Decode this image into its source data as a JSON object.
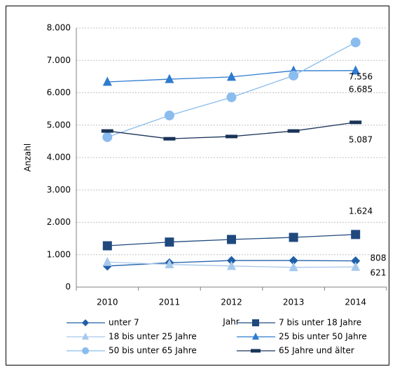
{
  "chart_data": {
    "type": "line",
    "x_label": "Jahr",
    "y_label": "Anzahl",
    "categories": [
      "2010",
      "2011",
      "2012",
      "2013",
      "2014"
    ],
    "ylim": [
      0,
      8000
    ],
    "yticks": [
      0,
      {
        "value": 1000,
        "label": "1.000"
      },
      {
        "value": 2000,
        "label": "2.000"
      },
      {
        "value": 3000,
        "label": "3.000"
      },
      {
        "value": 4000,
        "label": "4.000"
      },
      {
        "value": 5000,
        "label": "5.000"
      },
      {
        "value": 6000,
        "label": "6.000"
      },
      {
        "value": 7000,
        "label": "7.000"
      },
      {
        "value": 8000,
        "label": "8.000"
      }
    ],
    "grid": true,
    "legend": "bottom",
    "series": [
      {
        "name": "unter 7",
        "color": "#1f5fa8",
        "marker": "diamond",
        "values": [
          650,
          750,
          820,
          820,
          808
        ],
        "value_labels": [
          null,
          null,
          null,
          null,
          "808"
        ]
      },
      {
        "name": "7 bis unter 18 Jahre",
        "color": "#1f497d",
        "marker": "square",
        "values": [
          1275,
          1390,
          1470,
          1535,
          1624
        ],
        "value_labels": [
          null,
          null,
          null,
          null,
          "1.624"
        ]
      },
      {
        "name": "18 bis unter 25 Jahre",
        "color": "#a6c8ec",
        "marker": "triangle",
        "values": [
          770,
          700,
          650,
          610,
          621
        ],
        "value_labels": [
          null,
          null,
          null,
          null,
          "621"
        ]
      },
      {
        "name": "25 bis unter 50 Jahre",
        "color": "#2e7bcf",
        "marker": "triangle",
        "values": [
          6335,
          6420,
          6490,
          6680,
          6685
        ],
        "value_labels": [
          null,
          null,
          null,
          null,
          "6.685"
        ]
      },
      {
        "name": "50 bis unter 65 Jahre",
        "color": "#8bbcee",
        "marker": "circle",
        "values": [
          4630,
          5300,
          5860,
          6530,
          7556
        ],
        "value_labels": [
          null,
          null,
          null,
          null,
          "7.556"
        ]
      },
      {
        "name": "65 Jahre und älter",
        "color": "#1a3358",
        "marker": "dash",
        "values": [
          4820,
          4580,
          4650,
          4820,
          5087
        ],
        "value_labels": [
          null,
          null,
          null,
          null,
          "5.087"
        ]
      }
    ]
  }
}
